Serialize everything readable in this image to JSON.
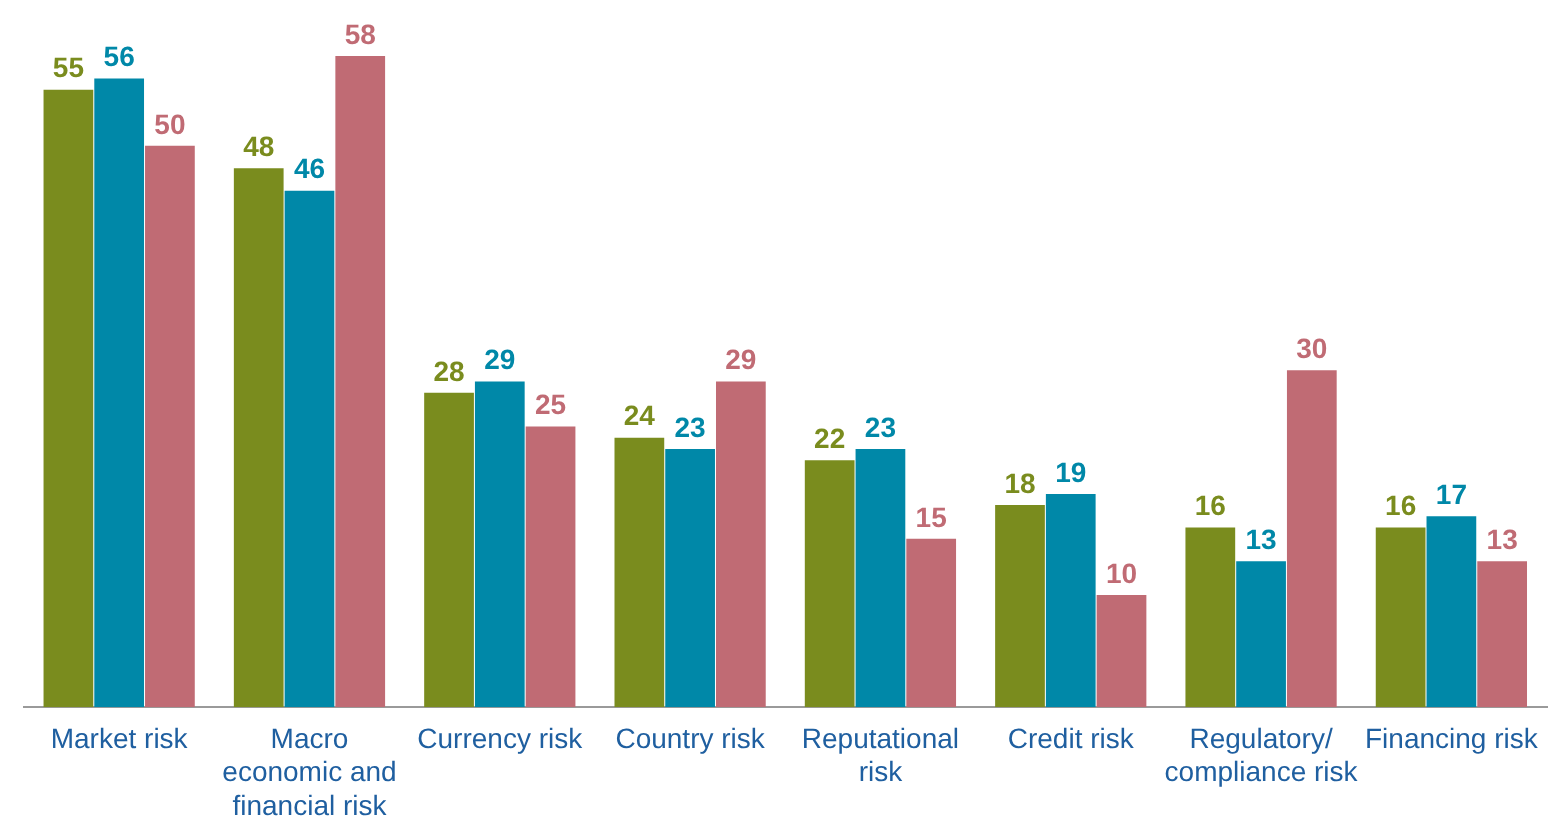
{
  "chart_data": {
    "type": "bar",
    "categories": [
      "Market risk",
      "Macro economic and financial risk",
      "Currency risk",
      "Country risk",
      "Reputational risk",
      "Credit risk",
      "Regulatory/ compliance risk",
      "Financing risk"
    ],
    "series": [
      {
        "color": "#7a8c1e",
        "values": [
          55,
          48,
          28,
          24,
          22,
          18,
          16,
          16
        ]
      },
      {
        "color": "#0088a8",
        "values": [
          56,
          46,
          29,
          23,
          23,
          19,
          13,
          17
        ]
      },
      {
        "color": "#c06b74",
        "values": [
          50,
          58,
          25,
          29,
          15,
          10,
          30,
          13
        ]
      }
    ],
    "ylim": [
      0,
      58
    ],
    "tick_labels": "x",
    "grid": false,
    "legend": false,
    "data_labels": true
  }
}
